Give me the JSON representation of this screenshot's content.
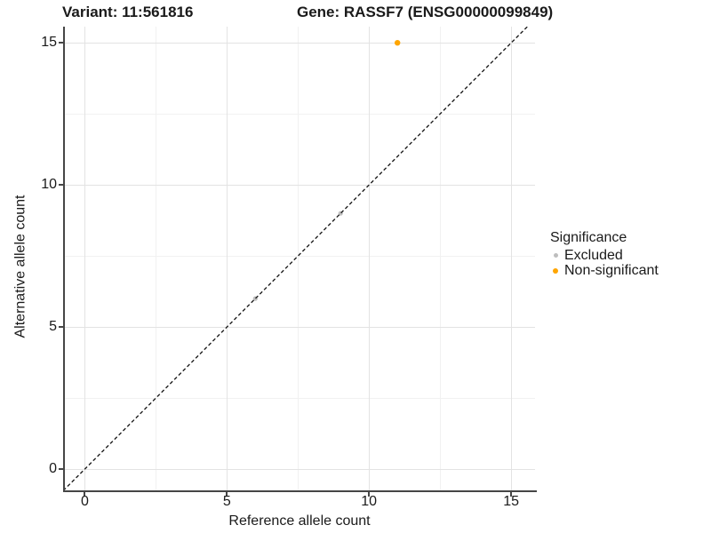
{
  "titles": {
    "variant": "Variant: 11:561816",
    "gene": "Gene: RASSF7 (ENSG00000099849)"
  },
  "chart_data": {
    "type": "scatter",
    "titles": {
      "left": "Variant: 11:561816",
      "right": "Gene: RASSF7 (ENSG00000099849)"
    },
    "xlabel": "Reference allele count",
    "ylabel": "Alternative allele count",
    "xlim": [
      -0.7,
      15.84
    ],
    "ylim": [
      -0.81,
      15.57
    ],
    "xticks": [
      0,
      5,
      10,
      15
    ],
    "yticks": [
      0,
      5,
      10,
      15
    ],
    "xticks_minor": [
      2.5,
      7.5,
      12.5
    ],
    "yticks_minor": [
      2.5,
      7.5,
      12.5
    ],
    "grid": true,
    "identity_line": {
      "equation": "y = x",
      "style": "dashed",
      "color": "#1f1f1f"
    },
    "series": [
      {
        "name": "Excluded",
        "color": "#bebebe",
        "marker_px": 5,
        "points": [
          [
            6,
            6
          ],
          [
            9,
            9
          ]
        ]
      },
      {
        "name": "Non-significant",
        "color": "#ffa500",
        "marker_px": 6,
        "points": [
          [
            11,
            15
          ]
        ]
      }
    ],
    "legend": {
      "title": "Significance",
      "position": "right"
    }
  },
  "colors": {
    "grid_major": "#e3e3e3",
    "grid_minor": "#f1f1f1",
    "axis_line": "#464646",
    "text": "#1a1a1a",
    "background": "#ffffff"
  }
}
